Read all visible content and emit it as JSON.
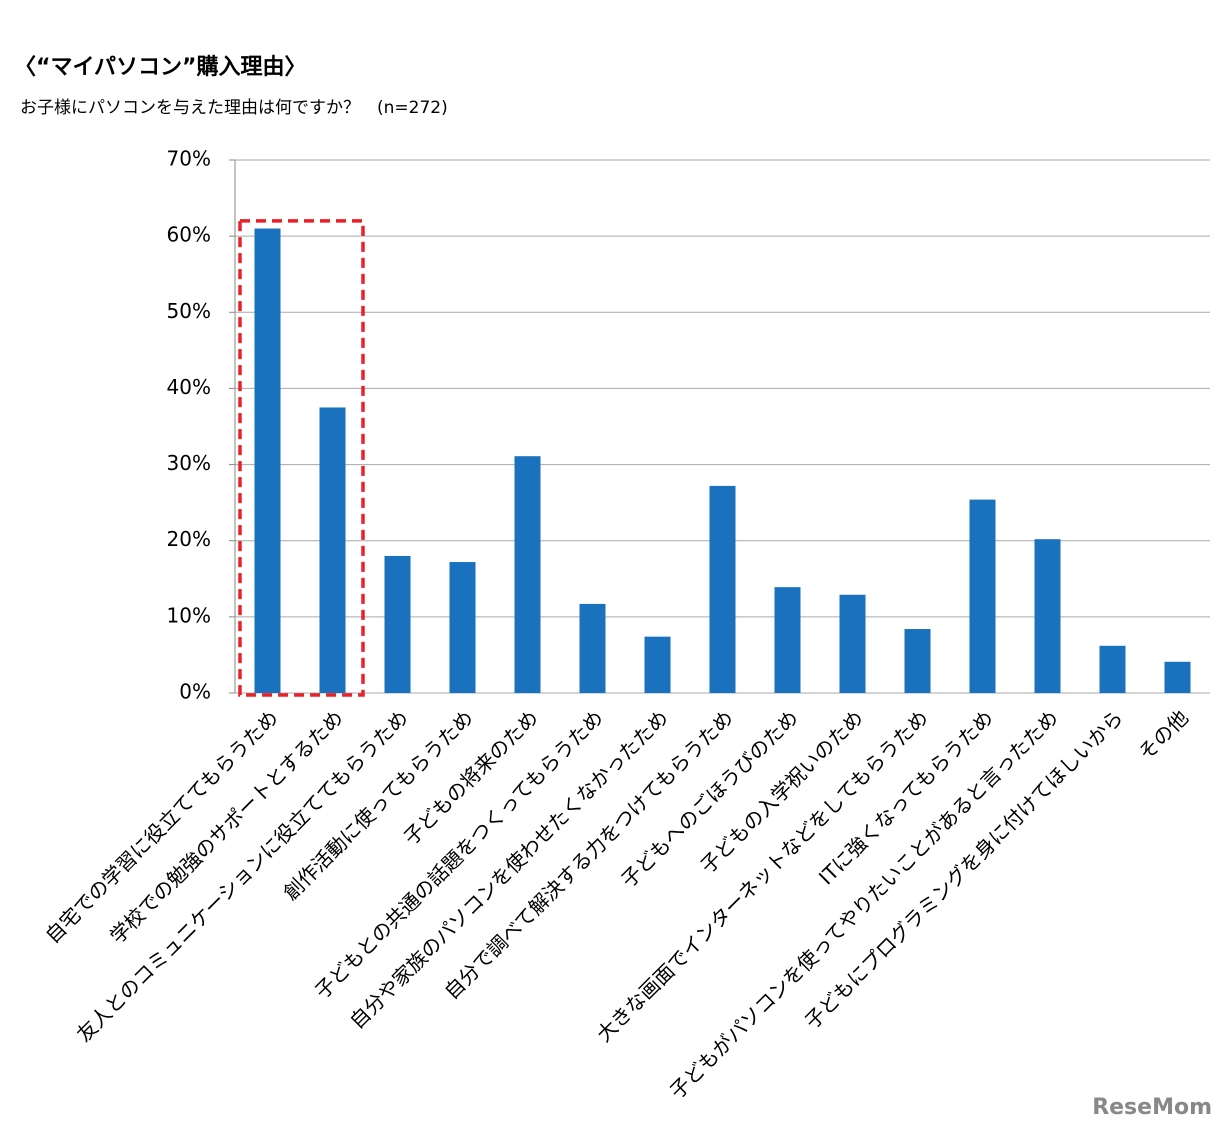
{
  "chart_data": {
    "type": "bar",
    "title": "〈“マイパソコン”購入理由〉",
    "subtitle": "お子様にパソコンを与えた理由は何ですか？　(n=272)",
    "watermark": "ReseMom",
    "categories": [
      "自宅での学習に役立ててもらうため",
      "学校での勉強のサポートとするため",
      "友人とのコミュニケーションに役立ててもらうため",
      "創作活動に使ってもらうため",
      "子どもの将来のため",
      "子どもとの共通の話題をつくってもらうため",
      "自分や家族のパソコンを使わせたくなかったため",
      "自分で調べて解決する力をつけてもらうため",
      "子どもへのごほうびのため",
      "子どもの入学祝いのため",
      "大きな画面でインターネットなどをしてもらうため",
      "ITに強くなってもらうため",
      "子どもがパソコンを使ってやりたいことがあると言ったため",
      "子どもにプログラミングを身に付けてほしいから",
      "その他"
    ],
    "values": [
      61.0,
      37.5,
      18.0,
      17.2,
      31.1,
      11.7,
      7.4,
      27.2,
      13.9,
      12.9,
      8.4,
      25.4,
      20.2,
      6.2,
      4.1
    ],
    "color": "#1a72be",
    "ylim": [
      0,
      70
    ],
    "yticks": [
      {
        "value": 0,
        "label": "0%"
      },
      {
        "value": 10,
        "label": "10%"
      },
      {
        "value": 20,
        "label": "20%"
      },
      {
        "value": 30,
        "label": "30%"
      },
      {
        "value": 40,
        "label": "40%"
      },
      {
        "value": 50,
        "label": "50%"
      },
      {
        "value": 60,
        "label": "60%"
      },
      {
        "value": 70,
        "label": "70%"
      }
    ],
    "grid": true
  }
}
